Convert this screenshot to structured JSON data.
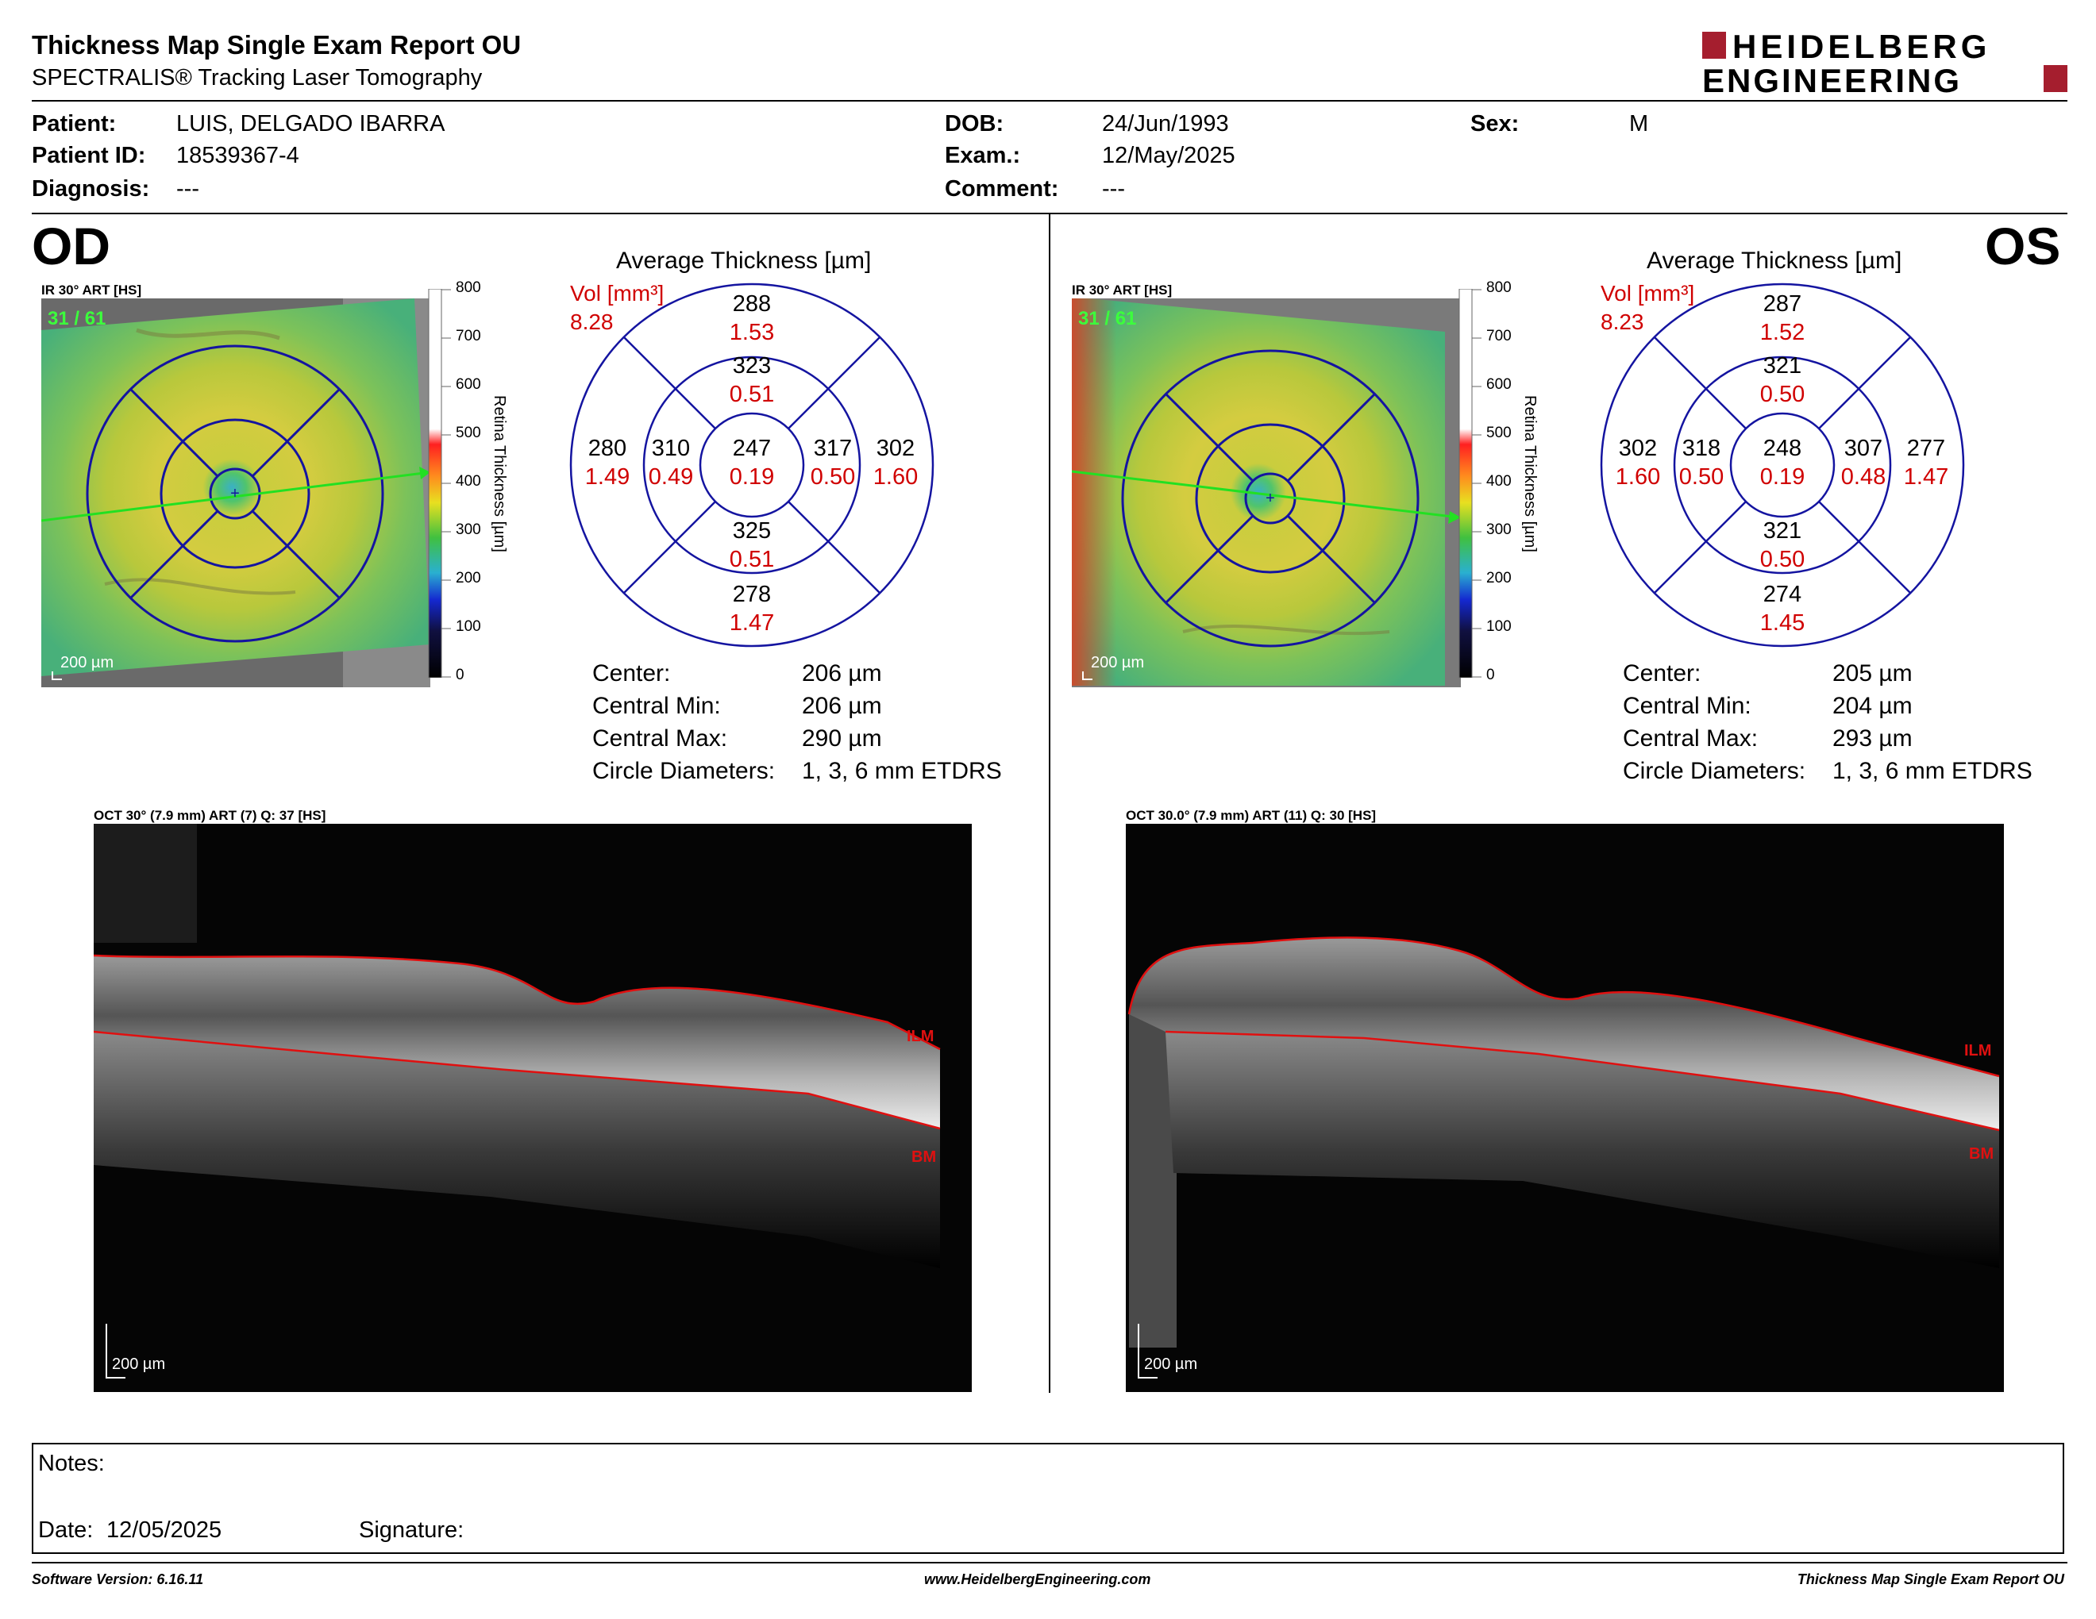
{
  "header": {
    "title": "Thickness Map Single Exam Report OU",
    "subtitle": "SPECTRALIS® Tracking Laser Tomography",
    "logo_line1": "HEIDELBERG",
    "logo_line2": "ENGINEERING"
  },
  "patient": {
    "patient_label": "Patient:",
    "patient_value": "LUIS, DELGADO IBARRA",
    "id_label": "Patient ID:",
    "id_value": "18539367-4",
    "diagnosis_label": "Diagnosis:",
    "diagnosis_value": "---",
    "dob_label": "DOB:",
    "dob_value": "24/Jun/1993",
    "exam_label": "Exam.:",
    "exam_value": "12/May/2025",
    "comment_label": "Comment:",
    "comment_value": "---",
    "sex_label": "Sex:",
    "sex_value": "M"
  },
  "colorbar": {
    "ticks": [
      "800",
      "700",
      "600",
      "500",
      "400",
      "300",
      "200",
      "100",
      "0"
    ],
    "title": "Retina Thickness [µm]"
  },
  "od": {
    "eye": "OD",
    "ir_title": "IR 30° ART [HS]",
    "ir_counter": "31 / 61",
    "ir_scale": "200 µm",
    "avg_title": "Average Thickness [µm]",
    "vol_label": "Vol [mm³]",
    "vol_value": "8.28",
    "sectors": {
      "outer_sup": [
        "288",
        "1.53"
      ],
      "inner_sup": [
        "323",
        "0.51"
      ],
      "outer_temp": [
        "280",
        "1.49"
      ],
      "inner_temp": [
        "310",
        "0.49"
      ],
      "center": [
        "247",
        "0.19"
      ],
      "inner_nas": [
        "317",
        "0.50"
      ],
      "outer_nas": [
        "302",
        "1.60"
      ],
      "inner_inf": [
        "325",
        "0.51"
      ],
      "outer_inf": [
        "278",
        "1.47"
      ]
    },
    "stats": {
      "center_label": "Center:",
      "center_value": "206 µm",
      "min_label": "Central Min:",
      "min_value": "206 µm",
      "max_label": "Central Max:",
      "max_value": "290 µm",
      "circ_label": "Circle Diameters:",
      "circ_value": "1, 3, 6 mm ETDRS"
    },
    "oct_title": "OCT 30° (7.9 mm) ART (7) Q: 37 [HS]",
    "oct_scale": "200 µm",
    "ilm": "ILM",
    "bm": "BM"
  },
  "os": {
    "eye": "OS",
    "ir_title": "IR 30° ART [HS]",
    "ir_counter": "31 / 61",
    "ir_scale": "200 µm",
    "avg_title": "Average Thickness [µm]",
    "vol_label": "Vol [mm³]",
    "vol_value": "8.23",
    "sectors": {
      "outer_sup": [
        "287",
        "1.52"
      ],
      "inner_sup": [
        "321",
        "0.50"
      ],
      "outer_temp": [
        "302",
        "1.60"
      ],
      "inner_temp": [
        "318",
        "0.50"
      ],
      "center": [
        "248",
        "0.19"
      ],
      "inner_nas": [
        "307",
        "0.48"
      ],
      "outer_nas": [
        "277",
        "1.47"
      ],
      "inner_inf": [
        "321",
        "0.50"
      ],
      "outer_inf": [
        "274",
        "1.45"
      ]
    },
    "stats": {
      "center_label": "Center:",
      "center_value": "205 µm",
      "min_label": "Central Min:",
      "min_value": "204 µm",
      "max_label": "Central Max:",
      "max_value": "293 µm",
      "circ_label": "Circle Diameters:",
      "circ_value": "1, 3, 6 mm ETDRS"
    },
    "oct_title": "OCT 30.0° (7.9 mm) ART (11) Q: 30 [HS]",
    "oct_scale": "200 µm",
    "ilm": "ILM",
    "bm": "BM"
  },
  "notes": {
    "notes_label": "Notes:",
    "date_label": "Date:",
    "date_value": "12/05/2025",
    "signature_label": "Signature:"
  },
  "footer": {
    "software": "Software Version: 6.16.11",
    "website": "www.HeidelbergEngineering.com",
    "report": "Thickness Map Single Exam Report OU"
  }
}
